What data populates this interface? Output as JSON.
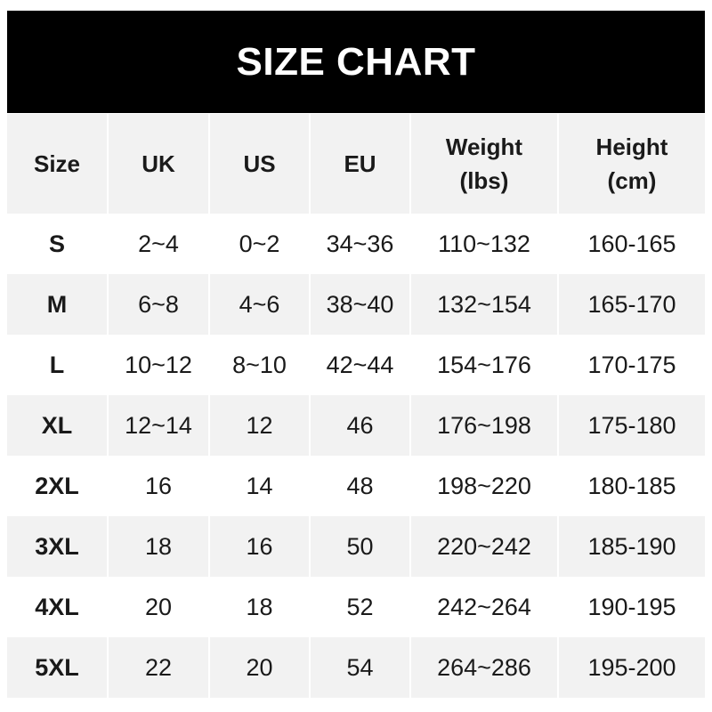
{
  "title": "SIZE CHART",
  "headers": [
    "Size",
    "UK",
    "US",
    "EU",
    "Weight\n(lbs)",
    "Height\n(cm)"
  ],
  "rows": [
    [
      "S",
      "2~4",
      "0~2",
      "34~36",
      "110~132",
      "160-165"
    ],
    [
      "M",
      "6~8",
      "4~6",
      "38~40",
      "132~154",
      "165-170"
    ],
    [
      "L",
      "10~12",
      "8~10",
      "42~44",
      "154~176",
      "170-175"
    ],
    [
      "XL",
      "12~14",
      "12",
      "46",
      "176~198",
      "175-180"
    ],
    [
      "2XL",
      "16",
      "14",
      "48",
      "198~220",
      "180-185"
    ],
    [
      "3XL",
      "18",
      "16",
      "50",
      "220~242",
      "185-190"
    ],
    [
      "4XL",
      "20",
      "18",
      "52",
      "242~264",
      "190-195"
    ],
    [
      "5XL",
      "22",
      "20",
      "54",
      "264~286",
      "195-200"
    ]
  ],
  "colors": {
    "title_bg": "#000000",
    "title_text": "#ffffff",
    "alt_row": "#f2f2f2"
  }
}
